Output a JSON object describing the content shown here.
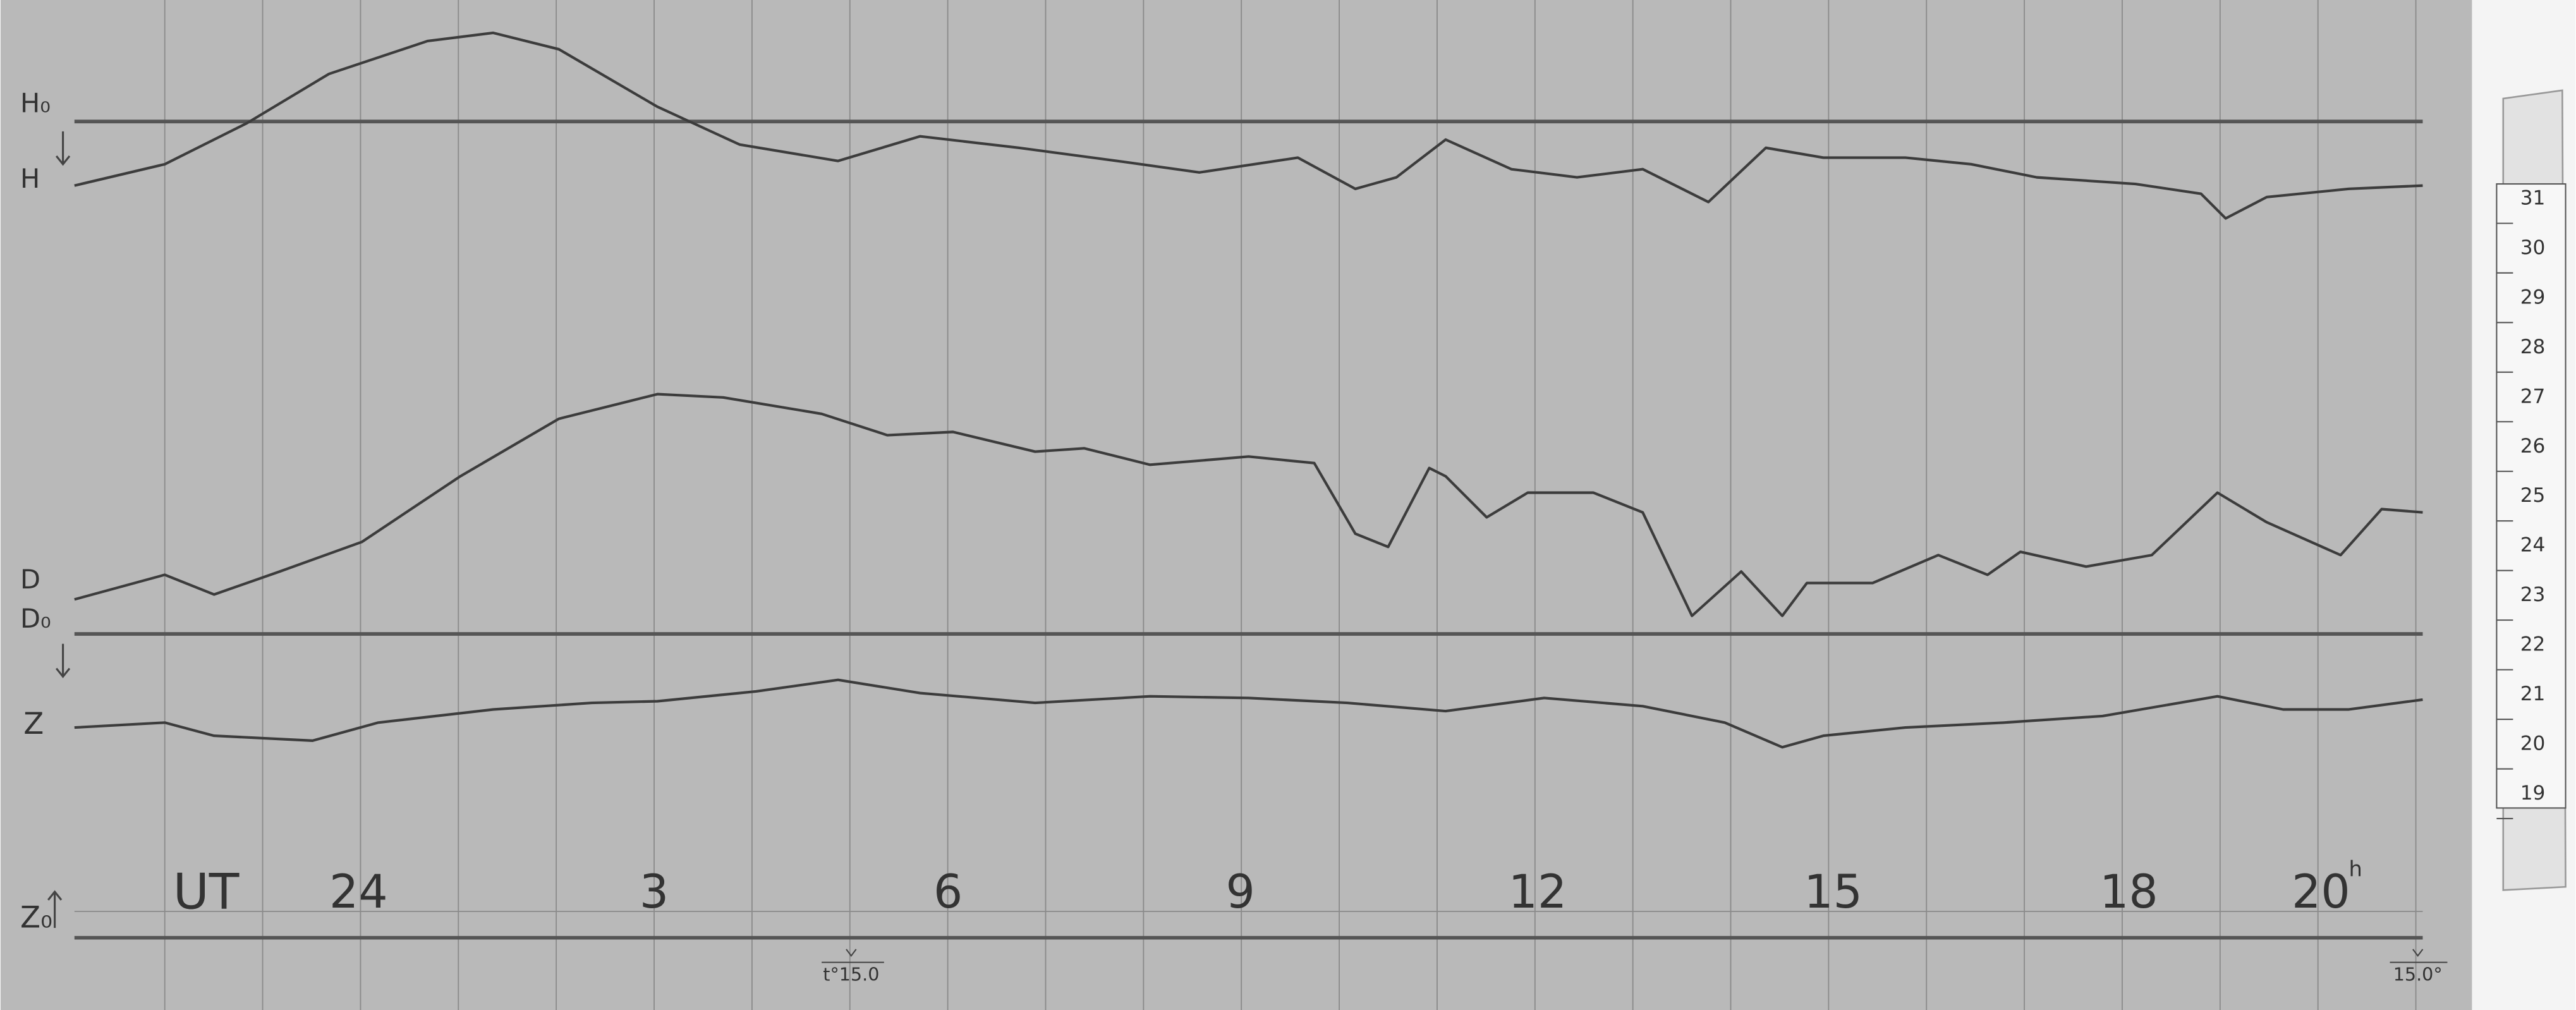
{
  "traces": {
    "h_base": "H₀",
    "h": "H",
    "d": "D",
    "d_base": "D₀",
    "z": "Z",
    "z_base": "Z₀"
  },
  "time_axis": {
    "unit": "UT",
    "hours": [
      "24",
      "3",
      "6",
      "9",
      "12",
      "15",
      "18",
      "20"
    ],
    "hour_mark": "h"
  },
  "temperature_marks": [
    "t°15.0",
    "15.0°"
  ],
  "scale_strip": [
    "31",
    "30",
    "29",
    "28",
    "27",
    "26",
    "25",
    "24",
    "23",
    "22",
    "21",
    "20",
    "19"
  ]
}
